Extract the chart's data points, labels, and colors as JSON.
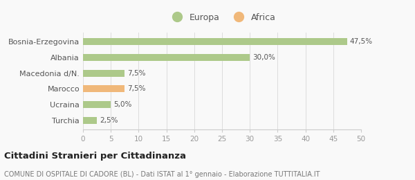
{
  "categories": [
    "Bosnia-Erzegovina",
    "Albania",
    "Macedonia d/N.",
    "Marocco",
    "Ucraina",
    "Turchia"
  ],
  "values": [
    47.5,
    30.0,
    7.5,
    7.5,
    5.0,
    2.5
  ],
  "colors": [
    "#adc98a",
    "#adc98a",
    "#adc98a",
    "#f0b87a",
    "#adc98a",
    "#adc98a"
  ],
  "labels": [
    "47,5%",
    "30,0%",
    "7,5%",
    "7,5%",
    "5,0%",
    "2,5%"
  ],
  "legend_europa_color": "#adc98a",
  "legend_africa_color": "#f0b87a",
  "xlim": [
    0,
    50
  ],
  "xticks": [
    0,
    5,
    10,
    15,
    20,
    25,
    30,
    35,
    40,
    45,
    50
  ],
  "title": "Cittadini Stranieri per Cittadinanza",
  "subtitle": "COMUNE DI OSPITALE DI CADORE (BL) - Dati ISTAT al 1° gennaio - Elaborazione TUTTITALIA.IT",
  "background_color": "#f9f9f9",
  "bar_height": 0.45
}
